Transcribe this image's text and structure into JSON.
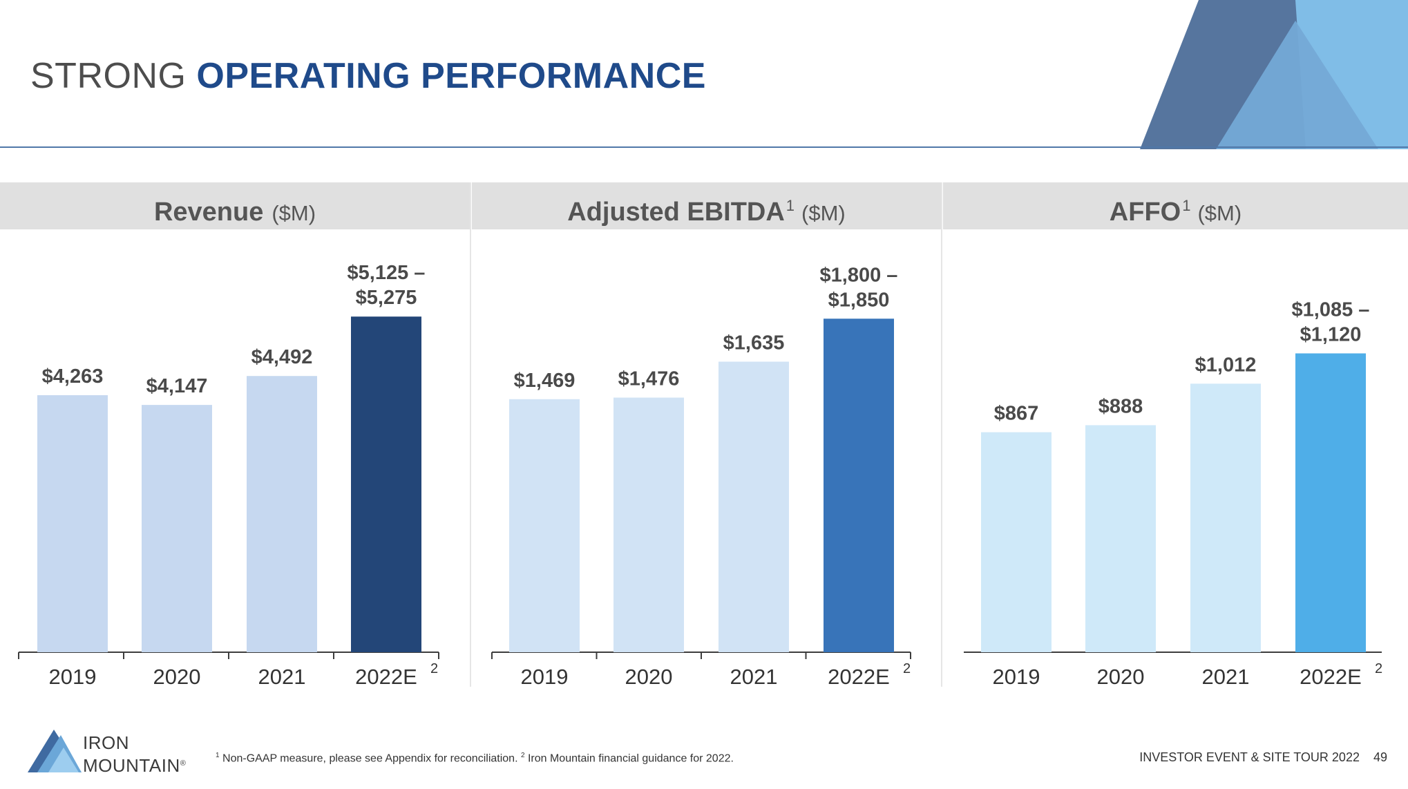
{
  "title": {
    "light": "STRONG",
    "bold": "OPERATING PERFORMANCE"
  },
  "panels": [
    {
      "heading": "Revenue",
      "sup": "",
      "unit": "($M)"
    },
    {
      "heading": "Adjusted EBITDA",
      "sup": "1",
      "unit": "($M)"
    },
    {
      "heading": "AFFO",
      "sup": "1",
      "unit": "($M)"
    }
  ],
  "chart_data": [
    {
      "type": "bar",
      "title": "Revenue ($M)",
      "categories": [
        "2019",
        "2020",
        "2021",
        "2022E"
      ],
      "category_sup": [
        "",
        "",
        "",
        "2"
      ],
      "values": [
        4263,
        4147,
        4492,
        5200
      ],
      "value_labels": [
        [
          "$4,263"
        ],
        [
          "$4,147"
        ],
        [
          "$4,492"
        ],
        [
          "$5,125 –",
          "$5,275"
        ]
      ],
      "range_last": [
        5125,
        5275
      ],
      "colors": [
        "#c6d8f0",
        "#c6d8f0",
        "#c6d8f0",
        "#234678"
      ],
      "ylim": [
        1200,
        5350
      ]
    },
    {
      "type": "bar",
      "title": "Adjusted EBITDA ($M)",
      "categories": [
        "2019",
        "2020",
        "2021",
        "2022E"
      ],
      "category_sup": [
        "",
        "",
        "",
        "2"
      ],
      "values": [
        1469,
        1476,
        1635,
        1825
      ],
      "value_labels": [
        [
          "$1,469"
        ],
        [
          "$1,476"
        ],
        [
          "$1,635"
        ],
        [
          "$1,800 –",
          "$1,850"
        ]
      ],
      "range_last": [
        1800,
        1850
      ],
      "colors": [
        "#d1e3f5",
        "#d1e3f5",
        "#d1e3f5",
        "#3874b9"
      ],
      "ylim": [
        350,
        1890
      ]
    },
    {
      "type": "bar",
      "title": "AFFO ($M)",
      "categories": [
        "2019",
        "2020",
        "2021",
        "2022E"
      ],
      "category_sup": [
        "",
        "",
        "",
        "2"
      ],
      "values": [
        867,
        888,
        1012,
        1102.5
      ],
      "value_labels": [
        [
          "$867"
        ],
        [
          "$888"
        ],
        [
          "$1,012"
        ],
        [
          "$1,085 –",
          "$1,120"
        ]
      ],
      "range_last": [
        1085,
        1120
      ],
      "colors": [
        "#cfe9f9",
        "#cfe9f9",
        "#cfe9f9",
        "#4faee8"
      ],
      "ylim": [
        210,
        1250
      ]
    }
  ],
  "logo": {
    "line1": "IRON",
    "line2": "MOUNTAIN",
    "reg": "®"
  },
  "footnote": {
    "m1": "1",
    "t1": " Non-GAAP measure, please see Appendix for reconciliation. ",
    "m2": "2",
    "t2": " Iron Mountain financial guidance for 2022."
  },
  "footer": {
    "event": "INVESTOR EVENT & SITE TOUR 2022",
    "page": "49"
  }
}
